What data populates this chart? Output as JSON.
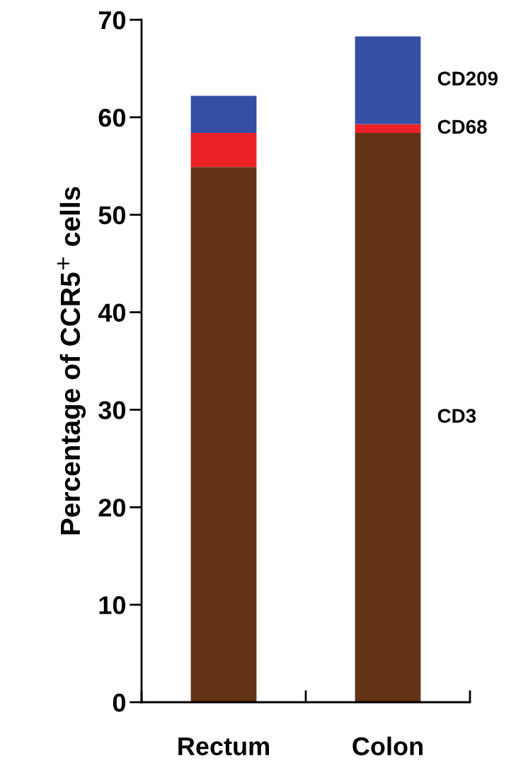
{
  "chart_data": {
    "type": "bar",
    "stacked": true,
    "ylabel": "Percentage of CCR5$^{+}$ cells",
    "categories": [
      "Rectum",
      "Colon"
    ],
    "series": [
      {
        "name": "CD3",
        "color": "#623415",
        "values": [
          54.9,
          58.4
        ]
      },
      {
        "name": "CD68",
        "color": "#ec2227",
        "values": [
          3.5,
          0.9
        ]
      },
      {
        "name": "CD209",
        "color": "#354fa4",
        "values": [
          3.8,
          9.0
        ]
      }
    ],
    "ylim": [
      0,
      70
    ],
    "yticks": [
      0,
      10,
      20,
      30,
      40,
      50,
      60,
      70
    ],
    "grid": false,
    "legend": false
  }
}
